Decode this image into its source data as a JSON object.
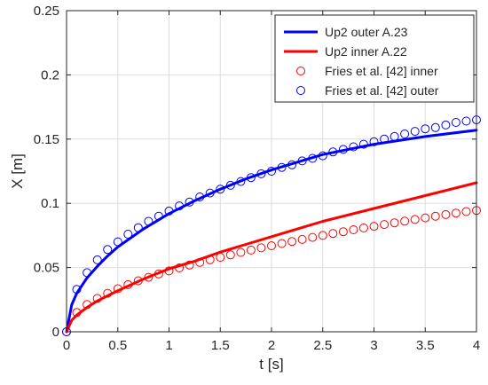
{
  "chart_data": {
    "type": "line",
    "title": "",
    "xlabel": "t [s]",
    "ylabel": "X [m]",
    "xlim": [
      0,
      4
    ],
    "ylim": [
      0,
      0.25
    ],
    "xticks": [
      0,
      0.5,
      1,
      1.5,
      2,
      2.5,
      3,
      3.5,
      4
    ],
    "xtick_labels": [
      "0",
      "0.5",
      "1",
      "1.5",
      "2",
      "2.5",
      "3",
      "3.5",
      "4"
    ],
    "yticks": [
      0,
      0.05,
      0.1,
      0.15,
      0.2,
      0.25
    ],
    "ytick_labels": [
      "0",
      "0.05",
      "0.1",
      "0.15",
      "0.2",
      "0.25"
    ],
    "grid": true,
    "legend_position": "top-right",
    "series": [
      {
        "name": "Up2 outer A.23",
        "style": "line",
        "color": "#0000ff",
        "x": [
          0,
          0.05,
          0.1,
          0.2,
          0.3,
          0.4,
          0.5,
          0.75,
          1,
          1.25,
          1.5,
          1.75,
          2,
          2.5,
          3,
          3.5,
          4
        ],
        "y": [
          0,
          0.021,
          0.03,
          0.042,
          0.051,
          0.059,
          0.066,
          0.08,
          0.092,
          0.102,
          0.111,
          0.119,
          0.126,
          0.138,
          0.146,
          0.152,
          0.157
        ]
      },
      {
        "name": "Up2 inner A.22",
        "style": "line",
        "color": "#ff0000",
        "x": [
          0,
          0.05,
          0.1,
          0.2,
          0.3,
          0.4,
          0.5,
          0.75,
          1,
          1.25,
          1.5,
          1.75,
          2,
          2.5,
          3,
          3.5,
          4
        ],
        "y": [
          0,
          0.009,
          0.013,
          0.019,
          0.024,
          0.028,
          0.032,
          0.041,
          0.049,
          0.055,
          0.062,
          0.068,
          0.074,
          0.086,
          0.096,
          0.106,
          0.116
        ]
      },
      {
        "name": "Fries et al. [42] inner",
        "style": "markers",
        "color": "#ff0000",
        "x": [
          0,
          0.1,
          0.2,
          0.3,
          0.4,
          0.5,
          0.6,
          0.7,
          0.8,
          0.9,
          1.0,
          1.1,
          1.2,
          1.3,
          1.4,
          1.5,
          1.6,
          1.7,
          1.8,
          1.9,
          2.0,
          2.1,
          2.2,
          2.3,
          2.4,
          2.5,
          2.6,
          2.7,
          2.8,
          2.9,
          3.0,
          3.1,
          3.2,
          3.3,
          3.4,
          3.5,
          3.6,
          3.7,
          3.8,
          3.9,
          4.0
        ],
        "y": [
          0,
          0.015,
          0.0212,
          0.026,
          0.03,
          0.0335,
          0.0367,
          0.0397,
          0.0424,
          0.045,
          0.0474,
          0.0497,
          0.0519,
          0.054,
          0.0561,
          0.058,
          0.0599,
          0.0618,
          0.0636,
          0.0653,
          0.067,
          0.0687,
          0.0703,
          0.0719,
          0.0735,
          0.075,
          0.0765,
          0.0779,
          0.0794,
          0.0808,
          0.0821,
          0.0835,
          0.0848,
          0.0861,
          0.0874,
          0.0887,
          0.09,
          0.0912,
          0.0924,
          0.0936,
          0.0945
        ]
      },
      {
        "name": "Fries et al. [42] outer",
        "style": "markers",
        "color": "#0000ff",
        "x": [
          0,
          0.1,
          0.2,
          0.3,
          0.4,
          0.5,
          0.6,
          0.7,
          0.8,
          0.9,
          1.0,
          1.1,
          1.2,
          1.3,
          1.4,
          1.5,
          1.6,
          1.7,
          1.8,
          1.9,
          2.0,
          2.1,
          2.2,
          2.3,
          2.4,
          2.5,
          2.6,
          2.7,
          2.8,
          2.9,
          3.0,
          3.1,
          3.2,
          3.3,
          3.4,
          3.5,
          3.6,
          3.7,
          3.8,
          3.9,
          4.0
        ],
        "y": [
          0,
          0.033,
          0.046,
          0.056,
          0.064,
          0.07,
          0.076,
          0.081,
          0.086,
          0.09,
          0.094,
          0.098,
          0.101,
          0.105,
          0.108,
          0.111,
          0.114,
          0.117,
          0.12,
          0.123,
          0.125,
          0.128,
          0.13,
          0.133,
          0.135,
          0.137,
          0.14,
          0.142,
          0.144,
          0.146,
          0.148,
          0.15,
          0.152,
          0.154,
          0.156,
          0.158,
          0.159,
          0.161,
          0.163,
          0.164,
          0.165
        ]
      }
    ]
  }
}
